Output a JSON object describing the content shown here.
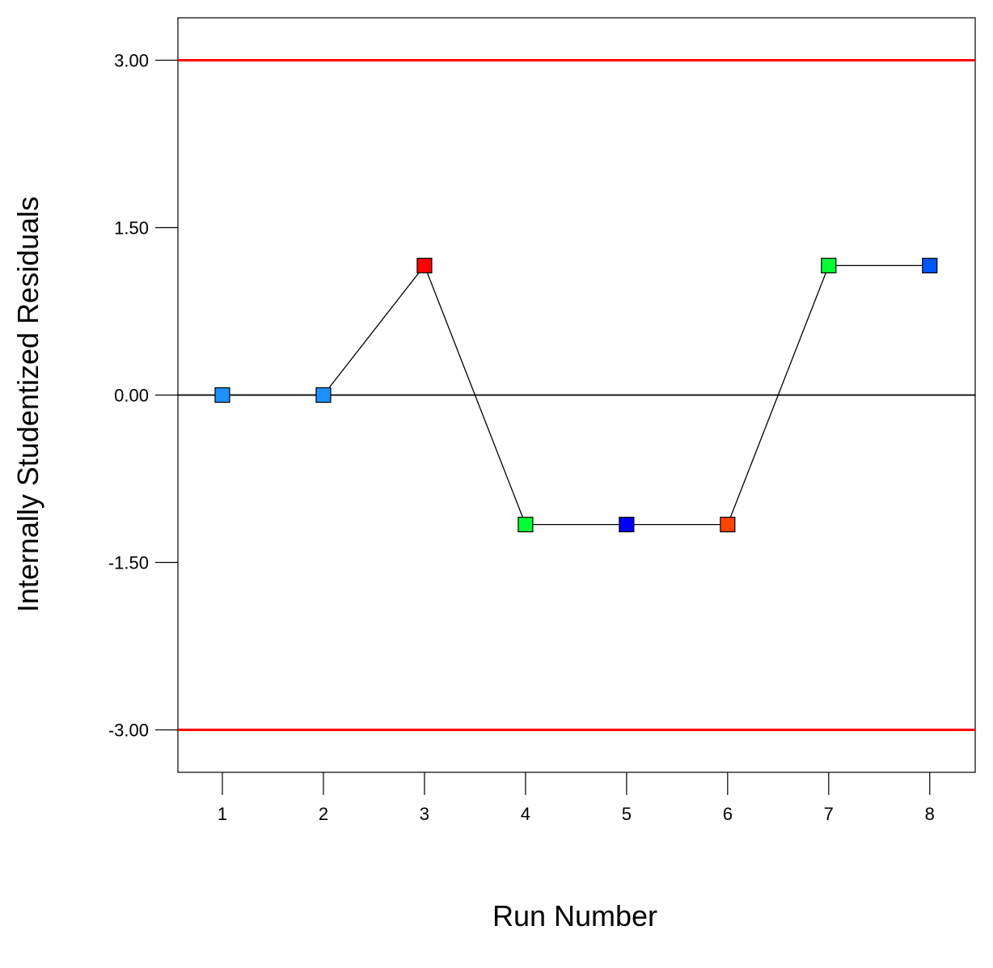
{
  "chart_data": {
    "type": "scatter",
    "xlabel": "Run Number",
    "ylabel": "Internally Studentized Residuals",
    "x": [
      1,
      2,
      3,
      4,
      5,
      6,
      7,
      8
    ],
    "y": [
      0.0,
      0.0,
      1.16,
      -1.16,
      -1.16,
      -1.16,
      1.16,
      1.16
    ],
    "point_colors": [
      "#1e90ff",
      "#1e90ff",
      "#ff0000",
      "#00ff33",
      "#0000ff",
      "#ff4500",
      "#00ff33",
      "#0055ff"
    ],
    "connect_points": true,
    "x_ticks": [
      "1",
      "2",
      "3",
      "4",
      "5",
      "6",
      "7",
      "8"
    ],
    "y_ticks": [
      "3.00",
      "1.50",
      "0.00",
      "-1.50",
      "-3.00"
    ],
    "y_tick_values": [
      3.0,
      1.5,
      0.0,
      -1.5,
      -3.0
    ],
    "xlim": [
      0.56,
      8.45
    ],
    "ylim": [
      -3.38,
      3.38
    ],
    "limit_lines": [
      3.0,
      -3.0
    ],
    "limit_line_color": "#ff0000",
    "zero_line_color": "#000000",
    "marker": "square",
    "grid": false,
    "legend": "none"
  }
}
